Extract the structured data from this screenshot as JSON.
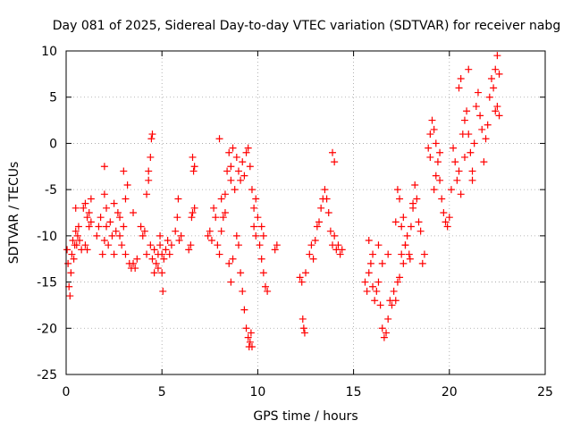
{
  "chart_data": {
    "type": "scatter",
    "title": "Day 081 of 2025, Sidereal Day-to-day VTEC variation (SDTVAR) for receiver nabg",
    "xlabel": "GPS time / hours",
    "ylabel": "SDTVAR / TECUs",
    "xlim": [
      0,
      25
    ],
    "ylim": [
      -25,
      10
    ],
    "xticks": [
      0,
      5,
      10,
      15,
      20,
      25
    ],
    "xtick_labels": [
      "0",
      "5",
      "10",
      "15",
      "20",
      "25"
    ],
    "yticks": [
      -25,
      -20,
      -15,
      -10,
      -5,
      0,
      5,
      10
    ],
    "ytick_labels": [
      "-25",
      "-20",
      "-15",
      "-10",
      "-5",
      "0",
      "5",
      "10"
    ],
    "grid": true,
    "marker": "+",
    "series": [
      {
        "name": "SDTVAR",
        "color": "#ff0000",
        "points": [
          [
            0.05,
            -11.5
          ],
          [
            0.1,
            -13
          ],
          [
            0.15,
            -15.5
          ],
          [
            0.2,
            -16.5
          ],
          [
            0.25,
            -14
          ],
          [
            0.3,
            -12
          ],
          [
            0.35,
            -10.5
          ],
          [
            0.4,
            -12.5
          ],
          [
            0.45,
            -11
          ],
          [
            0.5,
            -9.5
          ],
          [
            0.55,
            -11
          ],
          [
            0.6,
            -10
          ],
          [
            0.65,
            -9
          ],
          [
            0.7,
            -10.5
          ],
          [
            0.5,
            -7
          ],
          [
            0.8,
            -11.5
          ],
          [
            0.9,
            -7
          ],
          [
            1.0,
            -6.5
          ],
          [
            1.1,
            -8
          ],
          [
            1.2,
            -7.5
          ],
          [
            1.3,
            -8.5
          ],
          [
            1.0,
            -11
          ],
          [
            1.1,
            -11.5
          ],
          [
            1.3,
            -6
          ],
          [
            1.2,
            -9
          ],
          [
            1.6,
            -10
          ],
          [
            1.7,
            -9
          ],
          [
            1.8,
            -8
          ],
          [
            1.9,
            -12
          ],
          [
            2.0,
            -10.5
          ],
          [
            2.1,
            -9
          ],
          [
            2.2,
            -11
          ],
          [
            2.3,
            -8.5
          ],
          [
            2.4,
            -10
          ],
          [
            2.5,
            -12
          ],
          [
            2.6,
            -9.5
          ],
          [
            2.7,
            -7.5
          ],
          [
            2.8,
            -10
          ],
          [
            2.9,
            -11
          ],
          [
            3.0,
            -9
          ],
          [
            3.1,
            -12
          ],
          [
            2.0,
            -2.5
          ],
          [
            2.0,
            -5.5
          ],
          [
            2.1,
            -7
          ],
          [
            2.5,
            -6.5
          ],
          [
            2.8,
            -8
          ],
          [
            3.0,
            -3
          ],
          [
            3.2,
            -4.5
          ],
          [
            3.1,
            -6
          ],
          [
            3.3,
            -13
          ],
          [
            3.4,
            -13.5
          ],
          [
            3.5,
            -13
          ],
          [
            3.6,
            -13.5
          ],
          [
            3.7,
            -12.5
          ],
          [
            3.5,
            -7.5
          ],
          [
            3.9,
            -9
          ],
          [
            4.0,
            -10
          ],
          [
            4.1,
            -9.5
          ],
          [
            4.2,
            -5.5
          ],
          [
            4.3,
            -3
          ],
          [
            4.4,
            -1.5
          ],
          [
            4.45,
            0.5
          ],
          [
            4.5,
            1
          ],
          [
            4.3,
            -4
          ],
          [
            4.2,
            -12
          ],
          [
            4.4,
            -11
          ],
          [
            4.5,
            -12.5
          ],
          [
            4.6,
            -11.5
          ],
          [
            4.7,
            -13
          ],
          [
            4.8,
            -12
          ],
          [
            4.9,
            -11
          ],
          [
            5.0,
            -14
          ],
          [
            5.05,
            -16
          ],
          [
            5.1,
            -12.5
          ],
          [
            5.2,
            -11.5
          ],
          [
            5.3,
            -10.5
          ],
          [
            5.4,
            -12
          ],
          [
            5.5,
            -11
          ],
          [
            4.8,
            -13.5
          ],
          [
            4.6,
            -14
          ],
          [
            4.9,
            -10
          ],
          [
            5.0,
            -12
          ],
          [
            5.7,
            -9.5
          ],
          [
            5.8,
            -8
          ],
          [
            5.85,
            -6
          ],
          [
            5.9,
            -10.5
          ],
          [
            6.0,
            -10
          ],
          [
            6.4,
            -11.5
          ],
          [
            6.5,
            -11
          ],
          [
            6.55,
            -8
          ],
          [
            6.6,
            -7.5
          ],
          [
            6.65,
            -3
          ],
          [
            6.7,
            -2.5
          ],
          [
            6.6,
            -1.5
          ],
          [
            6.7,
            -7
          ],
          [
            7.4,
            -10
          ],
          [
            7.5,
            -9.5
          ],
          [
            7.6,
            -10.5
          ],
          [
            7.7,
            -7
          ],
          [
            7.8,
            -8
          ],
          [
            7.9,
            -11
          ],
          [
            8.0,
            -12
          ],
          [
            8.1,
            -9.5
          ],
          [
            8.2,
            -8
          ],
          [
            8.3,
            -5.5
          ],
          [
            8.4,
            -3
          ],
          [
            8.5,
            -1
          ],
          [
            8.6,
            -2.5
          ],
          [
            8.7,
            -0.5
          ],
          [
            8.8,
            -5
          ],
          [
            8.9,
            -1.5
          ],
          [
            9.0,
            -3
          ],
          [
            9.1,
            -4
          ],
          [
            9.2,
            -2
          ],
          [
            9.3,
            -3.5
          ],
          [
            9.4,
            -1
          ],
          [
            9.5,
            -0.5
          ],
          [
            9.6,
            -2.5
          ],
          [
            9.7,
            -5
          ],
          [
            9.8,
            -7
          ],
          [
            9.9,
            -6
          ],
          [
            8.1,
            -6
          ],
          [
            8.3,
            -7.5
          ],
          [
            8.6,
            -4
          ],
          [
            8.0,
            0.5
          ],
          [
            8.5,
            -13
          ],
          [
            8.6,
            -15
          ],
          [
            8.7,
            -12.5
          ],
          [
            8.9,
            -10
          ],
          [
            9.0,
            -11
          ],
          [
            9.1,
            -14
          ],
          [
            9.2,
            -16
          ],
          [
            9.3,
            -18
          ],
          [
            9.4,
            -20
          ],
          [
            9.5,
            -21
          ],
          [
            9.55,
            -22
          ],
          [
            9.6,
            -21.5
          ],
          [
            9.7,
            -22
          ],
          [
            9.65,
            -20.5
          ],
          [
            9.8,
            -9
          ],
          [
            9.9,
            -10
          ],
          [
            10.0,
            -8
          ],
          [
            10.1,
            -11
          ],
          [
            10.2,
            -12.5
          ],
          [
            10.3,
            -14
          ],
          [
            10.4,
            -15.5
          ],
          [
            10.5,
            -16
          ],
          [
            10.3,
            -10
          ],
          [
            10.2,
            -9
          ],
          [
            10.9,
            -11.5
          ],
          [
            11.0,
            -11
          ],
          [
            12.2,
            -14.5
          ],
          [
            12.3,
            -15
          ],
          [
            12.35,
            -19
          ],
          [
            12.4,
            -20
          ],
          [
            12.45,
            -20.5
          ],
          [
            12.5,
            -14
          ],
          [
            12.7,
            -12
          ],
          [
            12.8,
            -11
          ],
          [
            12.9,
            -12.5
          ],
          [
            13.0,
            -10.5
          ],
          [
            13.1,
            -9
          ],
          [
            13.2,
            -8.5
          ],
          [
            13.3,
            -7
          ],
          [
            13.4,
            -6
          ],
          [
            13.5,
            -5
          ],
          [
            13.6,
            -6
          ],
          [
            13.7,
            -7.5
          ],
          [
            13.8,
            -9.5
          ],
          [
            13.9,
            -11
          ],
          [
            14.0,
            -10
          ],
          [
            14.1,
            -11.5
          ],
          [
            14.2,
            -11
          ],
          [
            14.3,
            -12
          ],
          [
            14.4,
            -11.5
          ],
          [
            13.9,
            -1
          ],
          [
            14.0,
            -2
          ],
          [
            15.6,
            -15
          ],
          [
            15.7,
            -16
          ],
          [
            15.8,
            -14
          ],
          [
            15.9,
            -13
          ],
          [
            16.0,
            -15.5
          ],
          [
            16.1,
            -17
          ],
          [
            16.2,
            -16
          ],
          [
            16.3,
            -15
          ],
          [
            16.4,
            -17.5
          ],
          [
            16.5,
            -20
          ],
          [
            16.6,
            -21
          ],
          [
            16.7,
            -20.5
          ],
          [
            16.8,
            -19
          ],
          [
            16.9,
            -17
          ],
          [
            17.0,
            -17.5
          ],
          [
            17.1,
            -16
          ],
          [
            17.2,
            -17
          ],
          [
            17.3,
            -15
          ],
          [
            17.4,
            -14.5
          ],
          [
            17.5,
            -12
          ],
          [
            17.6,
            -13
          ],
          [
            17.7,
            -11
          ],
          [
            17.8,
            -10
          ],
          [
            17.9,
            -12
          ],
          [
            16.3,
            -11
          ],
          [
            16.5,
            -13
          ],
          [
            16.8,
            -12
          ],
          [
            16.0,
            -12
          ],
          [
            15.8,
            -10.5
          ],
          [
            17.2,
            -8.5
          ],
          [
            17.3,
            -5
          ],
          [
            17.4,
            -6
          ],
          [
            17.5,
            -9
          ],
          [
            17.6,
            -8
          ],
          [
            17.7,
            -11
          ],
          [
            18.0,
            -9
          ],
          [
            18.1,
            -7
          ],
          [
            18.2,
            -4.5
          ],
          [
            18.3,
            -6
          ],
          [
            18.4,
            -8.5
          ],
          [
            18.5,
            -9.5
          ],
          [
            18.6,
            -13
          ],
          [
            18.7,
            -12
          ],
          [
            17.95,
            -12.5
          ],
          [
            18.1,
            -6.5
          ],
          [
            18.9,
            -0.5
          ],
          [
            19.0,
            1
          ],
          [
            19.1,
            2.5
          ],
          [
            19.2,
            1.5
          ],
          [
            19.3,
            0
          ],
          [
            19.4,
            -2
          ],
          [
            19.5,
            -4
          ],
          [
            19.6,
            -6
          ],
          [
            19.7,
            -7.5
          ],
          [
            19.8,
            -8.5
          ],
          [
            19.9,
            -9
          ],
          [
            20.0,
            -8
          ],
          [
            20.1,
            -5
          ],
          [
            19.2,
            -5
          ],
          [
            19.3,
            -3.5
          ],
          [
            19.5,
            -1
          ],
          [
            19.0,
            -1.5
          ],
          [
            20.2,
            -0.5
          ],
          [
            20.3,
            -2
          ],
          [
            20.4,
            -4
          ],
          [
            20.5,
            -3
          ],
          [
            20.6,
            -5.5
          ],
          [
            20.7,
            1
          ],
          [
            20.8,
            2.5
          ],
          [
            20.9,
            3.5
          ],
          [
            21.0,
            1
          ],
          [
            21.1,
            -1
          ],
          [
            21.2,
            -3
          ],
          [
            21.3,
            0
          ],
          [
            21.4,
            4
          ],
          [
            21.5,
            5.5
          ],
          [
            21.6,
            3
          ],
          [
            21.7,
            1.5
          ],
          [
            21.8,
            -2
          ],
          [
            21.9,
            0.5
          ],
          [
            22.0,
            2
          ],
          [
            20.5,
            6
          ],
          [
            20.6,
            7
          ],
          [
            21.0,
            8
          ],
          [
            21.2,
            -4
          ],
          [
            20.8,
            -1.5
          ],
          [
            22.1,
            5
          ],
          [
            22.2,
            7
          ],
          [
            22.3,
            6
          ],
          [
            22.4,
            8
          ],
          [
            22.5,
            9.5
          ],
          [
            22.6,
            7.5
          ],
          [
            22.4,
            3.5
          ],
          [
            22.5,
            4
          ],
          [
            22.6,
            3
          ]
        ]
      }
    ]
  }
}
